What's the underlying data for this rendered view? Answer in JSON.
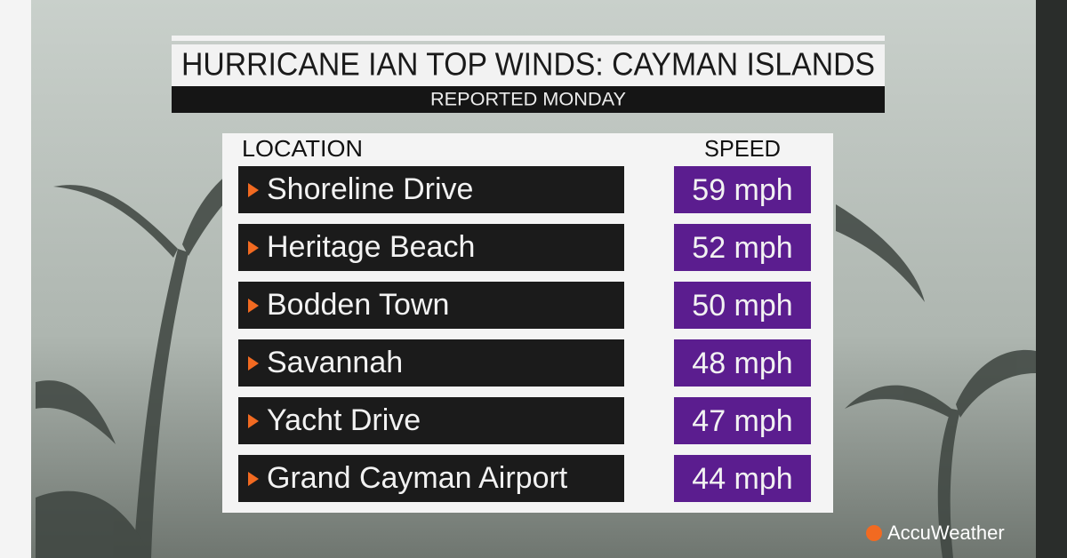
{
  "header": {
    "title": "HURRICANE IAN TOP WINDS: CAYMAN ISLANDS",
    "subtitle": "REPORTED MONDAY"
  },
  "table": {
    "columns": [
      "LOCATION",
      "SPEED"
    ],
    "rows": [
      [
        "Shoreline Drive",
        "59 mph"
      ],
      [
        "Heritage Beach",
        "52 mph"
      ],
      [
        "Bodden Town",
        "50 mph"
      ],
      [
        "Savannah",
        "48 mph"
      ],
      [
        "Yacht Drive",
        "47 mph"
      ],
      [
        "Grand Cayman Airport",
        "44 mph"
      ]
    ]
  },
  "brand": "AccuWeather"
}
